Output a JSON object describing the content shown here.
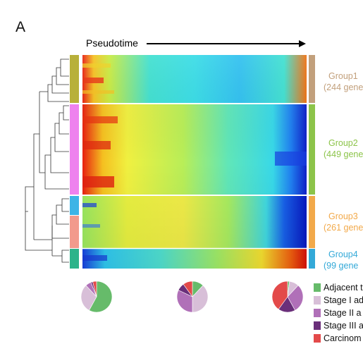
{
  "panel_label": "A",
  "pseudotime_label": "Pseudotime",
  "groups": [
    {
      "name": "Group1",
      "count_label": "(244 gene",
      "color": "#c2a07c",
      "cluster_color": "#b8b03a"
    },
    {
      "name": "Group2",
      "count_label": "(449 gene",
      "color": "#8cc44a",
      "cluster_color": "#ee82ee"
    },
    {
      "name": "Group3",
      "count_label": "(261 gene",
      "color": "#f2a94a",
      "cluster_color": "#3db4e6",
      "cluster_color_2": "#f29a8c"
    },
    {
      "name": "Group4",
      "count_label": "(99 gene",
      "color": "#33a9d8",
      "cluster_color": "#2db38a"
    }
  ],
  "legend": [
    {
      "label": "Adjacent t",
      "color": "#66bb6a"
    },
    {
      "label": "Stage I ad",
      "color": "#d8bfd8"
    },
    {
      "label": "Stage II a",
      "color": "#b070b8"
    },
    {
      "label": "Stage III a",
      "color": "#6a2f7a"
    },
    {
      "label": "Carcinom",
      "color": "#e34a4a"
    }
  ],
  "pies": [
    {
      "slices": [
        0.58,
        0.3,
        0.06,
        0.02,
        0.04
      ]
    },
    {
      "slices": [
        0.12,
        0.38,
        0.32,
        0.08,
        0.1
      ]
    },
    {
      "slices": [
        0.02,
        0.1,
        0.3,
        0.18,
        0.4
      ]
    }
  ]
}
